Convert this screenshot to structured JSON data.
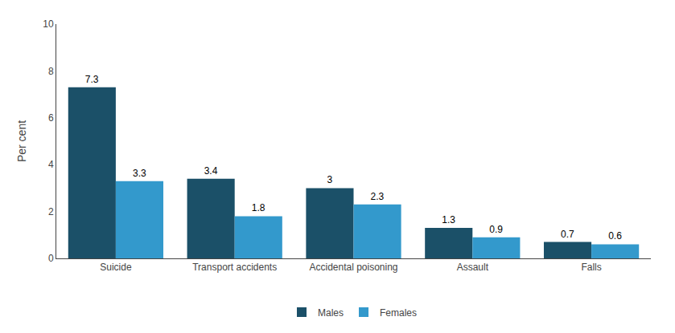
{
  "chart_data": {
    "type": "bar",
    "categories": [
      "Suicide",
      "Transport accidents",
      "Accidental poisoning",
      "Assault",
      "Falls"
    ],
    "series": [
      {
        "name": "Males",
        "color": "#1b5068",
        "values": [
          7.3,
          3.4,
          3.0,
          1.3,
          0.7
        ]
      },
      {
        "name": "Females",
        "color": "#3399cc",
        "values": [
          3.3,
          1.8,
          2.3,
          0.9,
          0.6
        ]
      }
    ],
    "ylabel": "Per cent",
    "ylim": [
      0,
      10
    ],
    "yticks": [
      0,
      2,
      4,
      6,
      8,
      10
    ],
    "grid": false,
    "legend": "bottom",
    "data_labels": true
  }
}
